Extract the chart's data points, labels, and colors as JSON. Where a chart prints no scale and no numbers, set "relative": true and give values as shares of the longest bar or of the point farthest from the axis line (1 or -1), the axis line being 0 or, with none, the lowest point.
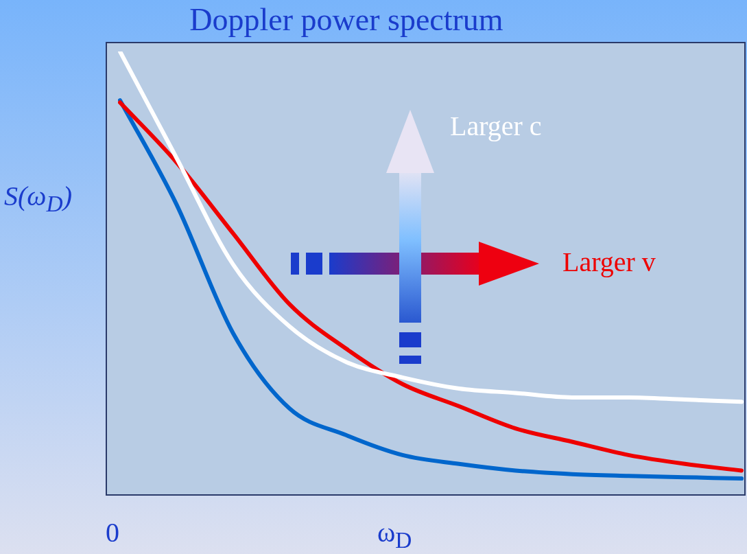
{
  "chart_data": {
    "type": "line",
    "title": "Doppler power spectrum",
    "xlabel": "ω$_{D}$",
    "ylabel": "S(ω$_{D}$)",
    "relative": true,
    "tick_labels": "x",
    "marker": "none",
    "categories": [
      null,
      null,
      null,
      null,
      null,
      null,
      null,
      null,
      null,
      null,
      null,
      null
    ],
    "series": [
      {
        "color": "#ffffff",
        "values": [
          1.0,
          0.76,
          0.52,
          0.38,
          0.3,
          0.265,
          0.24,
          0.23,
          0.22,
          0.22,
          0.215,
          0.21
        ]
      },
      {
        "color": "#ee0000",
        "values": [
          0.885,
          0.75,
          0.59,
          0.43,
          0.33,
          0.25,
          0.2,
          0.15,
          0.12,
          0.09,
          0.07,
          0.055
        ]
      },
      {
        "color": "#0066cc",
        "values": [
          0.89,
          0.655,
          0.365,
          0.195,
          0.135,
          0.09,
          0.07,
          0.055,
          0.047,
          0.043,
          0.04,
          0.037
        ]
      }
    ],
    "annotations": [
      "Larger c",
      "Larger v",
      "0"
    ]
  }
}
